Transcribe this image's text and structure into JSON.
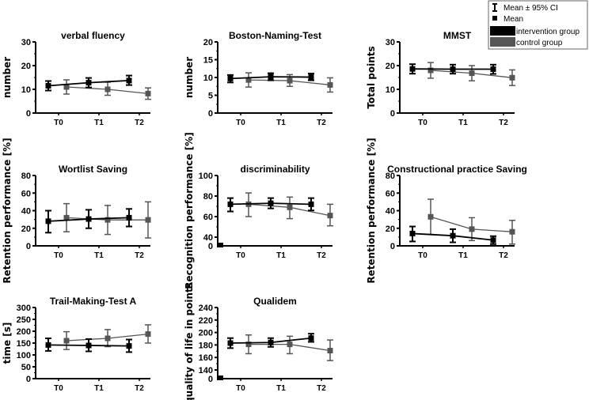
{
  "legend": {
    "items": [
      "Mean ± 95% CI",
      "Mean",
      "intervention group",
      "control group"
    ]
  },
  "colors": {
    "intervention": "#000000",
    "control": "#555555"
  },
  "chart_data": [
    {
      "type": "line",
      "title": "verbal fluency",
      "ylabel": "number",
      "categories": [
        "T0",
        "T1",
        "T2"
      ],
      "ylim": [
        0,
        30
      ],
      "yticks": [
        0,
        10,
        20,
        30
      ],
      "axis_break": false,
      "series": [
        {
          "name": "intervention group",
          "values": [
            11.5,
            12.8,
            13.7
          ],
          "ci_low": [
            9.5,
            10.8,
            11.8
          ],
          "ci_high": [
            13.5,
            14.8,
            15.8
          ]
        },
        {
          "name": "control group",
          "values": [
            11.0,
            10.0,
            8.2
          ],
          "ci_low": [
            8.0,
            7.5,
            5.8
          ],
          "ci_high": [
            14.0,
            13.0,
            10.6
          ]
        }
      ]
    },
    {
      "type": "line",
      "title": "Boston-Naming-Test",
      "ylabel": "number",
      "categories": [
        "T0",
        "T1",
        "T2"
      ],
      "ylim": [
        0,
        20
      ],
      "yticks": [
        0,
        5,
        10,
        15,
        20
      ],
      "axis_break": false,
      "series": [
        {
          "name": "intervention group",
          "values": [
            9.7,
            10.2,
            10.1
          ],
          "ci_low": [
            8.6,
            9.2,
            9.2
          ],
          "ci_high": [
            10.7,
            11.2,
            11.1
          ]
        },
        {
          "name": "control group",
          "values": [
            9.3,
            9.1,
            7.9
          ],
          "ci_low": [
            7.3,
            7.5,
            5.9
          ],
          "ci_high": [
            11.3,
            10.8,
            9.9
          ]
        }
      ]
    },
    {
      "type": "line",
      "title": "MMST",
      "ylabel": "Total points",
      "categories": [
        "T0",
        "T1",
        "T2"
      ],
      "ylim": [
        0,
        30
      ],
      "yticks": [
        0,
        10,
        20,
        30
      ],
      "axis_break": false,
      "series": [
        {
          "name": "intervention group",
          "values": [
            18.6,
            18.5,
            18.5
          ],
          "ci_low": [
            16.6,
            16.6,
            16.5
          ],
          "ci_high": [
            20.6,
            20.4,
            20.4
          ]
        },
        {
          "name": "control group",
          "values": [
            18.0,
            16.8,
            14.9
          ],
          "ci_low": [
            14.7,
            13.6,
            11.6
          ],
          "ci_high": [
            21.3,
            20.0,
            18.2
          ]
        }
      ]
    },
    {
      "type": "line",
      "title": "Wortlist Saving",
      "ylabel": "Retention performance [%]",
      "categories": [
        "T0",
        "T1",
        "T2"
      ],
      "ylim": [
        0,
        80
      ],
      "yticks": [
        0,
        20,
        40,
        60,
        80
      ],
      "axis_break": false,
      "series": [
        {
          "name": "intervention group",
          "values": [
            28,
            30.5,
            32
          ],
          "ci_low": [
            15,
            20,
            22
          ],
          "ci_high": [
            40,
            41,
            42
          ]
        },
        {
          "name": "control group",
          "values": [
            32,
            29.5,
            29.5
          ],
          "ci_low": [
            16,
            13,
            9
          ],
          "ci_high": [
            48,
            46,
            50
          ]
        }
      ]
    },
    {
      "type": "line",
      "title": "discriminability",
      "ylabel": "Recognition performance [%]",
      "categories": [
        "T0",
        "T1",
        "T2"
      ],
      "ylim": [
        40,
        100
      ],
      "yticks": [
        40,
        60,
        80,
        100
      ],
      "axis_break": true,
      "break_tick": 0,
      "series": [
        {
          "name": "intervention group",
          "values": [
            72,
            73,
            72
          ],
          "ci_low": [
            65,
            68,
            66
          ],
          "ci_high": [
            78,
            78,
            78
          ]
        },
        {
          "name": "control group",
          "values": [
            72,
            69,
            61
          ],
          "ci_low": [
            60,
            58,
            51
          ],
          "ci_high": [
            83,
            79,
            72
          ]
        }
      ]
    },
    {
      "type": "line",
      "title": "Constructional practice Saving",
      "ylabel": "Retention performance [%]",
      "categories": [
        "T0",
        "T1",
        "T2"
      ],
      "ylim": [
        0,
        80
      ],
      "yticks": [
        0,
        20,
        40,
        60,
        80
      ],
      "axis_break": false,
      "series": [
        {
          "name": "intervention group",
          "values": [
            14,
            11.5,
            6.5
          ],
          "ci_low": [
            5,
            4,
            2
          ],
          "ci_high": [
            22,
            19,
            11
          ]
        },
        {
          "name": "control group",
          "values": [
            33,
            19,
            16
          ],
          "ci_low": [
            13,
            6,
            2
          ],
          "ci_high": [
            53,
            32,
            29
          ]
        }
      ]
    },
    {
      "type": "line",
      "title": "Trail-Making-Test A",
      "ylabel": "time [s]",
      "categories": [
        "T0",
        "T1",
        "T2"
      ],
      "ylim": [
        0,
        300
      ],
      "yticks": [
        0,
        50,
        100,
        150,
        200,
        250,
        300
      ],
      "axis_break": false,
      "series": [
        {
          "name": "intervention group",
          "values": [
            142,
            140,
            138
          ],
          "ci_low": [
            117,
            115,
            112
          ],
          "ci_high": [
            170,
            167,
            165
          ]
        },
        {
          "name": "control group",
          "values": [
            160,
            170,
            188
          ],
          "ci_low": [
            123,
            135,
            150
          ],
          "ci_high": [
            198,
            207,
            227
          ]
        }
      ]
    },
    {
      "type": "line",
      "title": "Qualidem",
      "ylabel": "quality of life in points",
      "categories": [
        "T0",
        "T1",
        "T2"
      ],
      "ylim": [
        140,
        240
      ],
      "yticks": [
        140,
        160,
        180,
        200,
        220,
        240
      ],
      "axis_break": true,
      "break_tick": 0,
      "series": [
        {
          "name": "intervention group",
          "values": [
            183,
            184,
            191
          ],
          "ci_low": [
            175,
            177,
            185
          ],
          "ci_high": [
            191,
            191,
            198
          ]
        },
        {
          "name": "control group",
          "values": [
            181,
            181,
            171
          ],
          "ci_low": [
            166,
            166,
            155
          ],
          "ci_high": [
            196,
            194,
            188
          ]
        }
      ]
    }
  ]
}
